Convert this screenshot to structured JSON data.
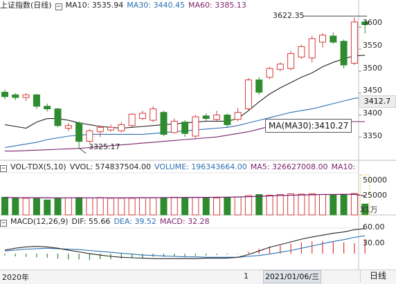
{
  "main_header": {
    "title": "上证指数(日线)",
    "ma10": "MA10: 3535.94",
    "ma30": "MA30: 3440.45",
    "ma60": "MA60: 3385.13"
  },
  "vol_header": {
    "indicator": "VOL-TDX(5,10)",
    "vvol": "VVOL: 574837504.00",
    "volume": "VOLUME: 196343664.00",
    "ma5": "MA5: 326627008.00",
    "ma10": "MA10:"
  },
  "macd_header": {
    "indicator": "MACD(12,26,9)",
    "dif": "DIF: 55.66",
    "dea": "DEA: 39.52",
    "macd": "MACD: 32.28"
  },
  "price_axis": [
    "3600",
    "3550",
    "3500",
    "3450",
    "3400",
    "3350"
  ],
  "current_price": "3412.7",
  "vol_axis": [
    "50000",
    "25000"
  ],
  "vol_unit": "X1万",
  "macd_axis": [
    "60.00",
    "30.00"
  ],
  "annotation": "MA(MA30):3410.27",
  "peak_label": "3622.35",
  "low_label": "3325.17",
  "bottom": {
    "year": "2020年",
    "month": "1",
    "current_date": "2021/01/06/三",
    "period": "日线"
  },
  "colors": {
    "up": "#d63a3a",
    "down": "#2e8b2e",
    "ma10": "#222222",
    "ma30": "#2a6fb3",
    "ma60": "#7a1f6e"
  },
  "chart_data": {
    "type": "candlestick",
    "y_range": [
      3300,
      3640
    ],
    "candles": [
      {
        "o": 3452,
        "c": 3442,
        "h": 3458,
        "l": 3436
      },
      {
        "o": 3446,
        "c": 3440,
        "h": 3450,
        "l": 3434
      },
      {
        "o": 3440,
        "c": 3446,
        "h": 3450,
        "l": 3432
      },
      {
        "o": 3446,
        "c": 3420,
        "h": 3448,
        "l": 3414
      },
      {
        "o": 3420,
        "c": 3414,
        "h": 3426,
        "l": 3408
      },
      {
        "o": 3414,
        "c": 3376,
        "h": 3416,
        "l": 3372
      },
      {
        "o": 3370,
        "c": 3376,
        "h": 3382,
        "l": 3364
      },
      {
        "o": 3382,
        "c": 3340,
        "h": 3386,
        "l": 3325
      },
      {
        "o": 3340,
        "c": 3364,
        "h": 3368,
        "l": 3336
      },
      {
        "o": 3362,
        "c": 3372,
        "h": 3376,
        "l": 3350
      },
      {
        "o": 3366,
        "c": 3372,
        "h": 3378,
        "l": 3362
      },
      {
        "o": 3364,
        "c": 3378,
        "h": 3384,
        "l": 3360
      },
      {
        "o": 3376,
        "c": 3402,
        "h": 3404,
        "l": 3372
      },
      {
        "o": 3392,
        "c": 3404,
        "h": 3410,
        "l": 3388
      },
      {
        "o": 3388,
        "c": 3414,
        "h": 3420,
        "l": 3384
      },
      {
        "o": 3406,
        "c": 3356,
        "h": 3410,
        "l": 3352
      },
      {
        "o": 3360,
        "c": 3386,
        "h": 3392,
        "l": 3358
      },
      {
        "o": 3384,
        "c": 3358,
        "h": 3388,
        "l": 3350
      },
      {
        "o": 3352,
        "c": 3396,
        "h": 3400,
        "l": 3348
      },
      {
        "o": 3398,
        "c": 3392,
        "h": 3404,
        "l": 3386
      },
      {
        "o": 3390,
        "c": 3400,
        "h": 3410,
        "l": 3386
      },
      {
        "o": 3400,
        "c": 3378,
        "h": 3404,
        "l": 3372
      },
      {
        "o": 3390,
        "c": 3406,
        "h": 3416,
        "l": 3386
      },
      {
        "o": 3414,
        "c": 3480,
        "h": 3484,
        "l": 3410
      },
      {
        "o": 3480,
        "c": 3452,
        "h": 3486,
        "l": 3446
      },
      {
        "o": 3486,
        "c": 3506,
        "h": 3510,
        "l": 3482
      },
      {
        "o": 3504,
        "c": 3516,
        "h": 3520,
        "l": 3500
      },
      {
        "o": 3506,
        "c": 3540,
        "h": 3546,
        "l": 3502
      },
      {
        "o": 3532,
        "c": 3556,
        "h": 3560,
        "l": 3528
      },
      {
        "o": 3530,
        "c": 3574,
        "h": 3580,
        "l": 3520
      },
      {
        "o": 3566,
        "c": 3582,
        "h": 3586,
        "l": 3554
      },
      {
        "o": 3580,
        "c": 3566,
        "h": 3588,
        "l": 3562
      },
      {
        "o": 3568,
        "c": 3514,
        "h": 3572,
        "l": 3506
      },
      {
        "o": 3518,
        "c": 3612,
        "h": 3622.35,
        "l": 3514
      },
      {
        "o": 3612,
        "c": 3606,
        "h": 3616,
        "l": 3586
      }
    ],
    "ma10": [
      3378,
      3374,
      3370,
      3384,
      3392,
      3392,
      3388,
      3382,
      3378,
      3374,
      3372,
      3370,
      3372,
      3374,
      3376,
      3378,
      3380,
      3382,
      3384,
      3386,
      3386,
      3386,
      3392,
      3410,
      3430,
      3448,
      3462,
      3474,
      3486,
      3496,
      3510,
      3520,
      3528,
      3535,
      3536
    ],
    "ma30": [
      3326,
      3330,
      3334,
      3338,
      3344,
      3348,
      3352,
      3354,
      3356,
      3356,
      3356,
      3356,
      3356,
      3356,
      3358,
      3360,
      3362,
      3364,
      3366,
      3368,
      3370,
      3372,
      3376,
      3382,
      3388,
      3394,
      3400,
      3406,
      3410,
      3414,
      3420,
      3426,
      3432,
      3438,
      3440
    ],
    "ma60": [
      3318,
      3318,
      3319,
      3320,
      3321,
      3322,
      3323,
      3324,
      3326,
      3328,
      3330,
      3332,
      3334,
      3336,
      3338,
      3340,
      3342,
      3344,
      3346,
      3348,
      3350,
      3354,
      3358,
      3362,
      3368,
      3374,
      3378,
      3382,
      3384,
      3385,
      3385,
      3385,
      3385,
      3385,
      3385
    ],
    "volume": {
      "y_range": [
        0,
        60000
      ],
      "bars": [
        26000,
        25000,
        24500,
        24000,
        22000,
        25000,
        25000,
        25500,
        25000,
        25500,
        24500,
        24500,
        24500,
        25500,
        25000,
        25500,
        26000,
        25500,
        26000,
        25500,
        25000,
        26000,
        26500,
        28500,
        30000,
        29000,
        30000,
        31000,
        30500,
        31000,
        30000,
        29500,
        30500,
        31500,
        16000
      ],
      "ma5": [
        25500,
        25400,
        25300,
        25200,
        25100,
        25000,
        25000,
        25000,
        25000,
        25000,
        25000,
        25000,
        25100,
        25200,
        25300,
        25400,
        25500,
        25600,
        25700,
        25800,
        25900,
        26000,
        26300,
        26800,
        27400,
        28000,
        28500,
        29000,
        29400,
        29700,
        30000,
        30100,
        30200,
        30300,
        28000
      ]
    },
    "macd": {
      "y_range": [
        -35,
        75
      ],
      "dif": [
        8,
        12,
        15,
        16,
        15,
        12,
        8,
        4,
        0,
        -3,
        -6,
        -8,
        -9,
        -10,
        -11,
        -11,
        -11,
        -11,
        -11,
        -10,
        -10,
        -10,
        -8,
        -2,
        6,
        14,
        20,
        26,
        32,
        37,
        41,
        45,
        48,
        53,
        55.66
      ],
      "dea": [
        6,
        8,
        10,
        11,
        12,
        11,
        10,
        9,
        7,
        5,
        3,
        1,
        -1,
        -3,
        -4,
        -5,
        -6,
        -7,
        -7,
        -8,
        -8,
        -8,
        -8,
        -6,
        -4,
        -1,
        3,
        7,
        12,
        17,
        22,
        27,
        31,
        36,
        39.52
      ],
      "hist": [
        -4,
        -6,
        -7,
        -8,
        -9,
        -11,
        -13,
        -13,
        -14,
        -12,
        -12,
        -11,
        -10,
        -9,
        -7,
        -7,
        -6,
        -6,
        -5,
        -4,
        -3,
        -2,
        -1,
        4,
        11,
        16,
        18,
        22,
        25,
        27,
        28,
        27,
        25,
        23,
        32.28
      ]
    }
  }
}
